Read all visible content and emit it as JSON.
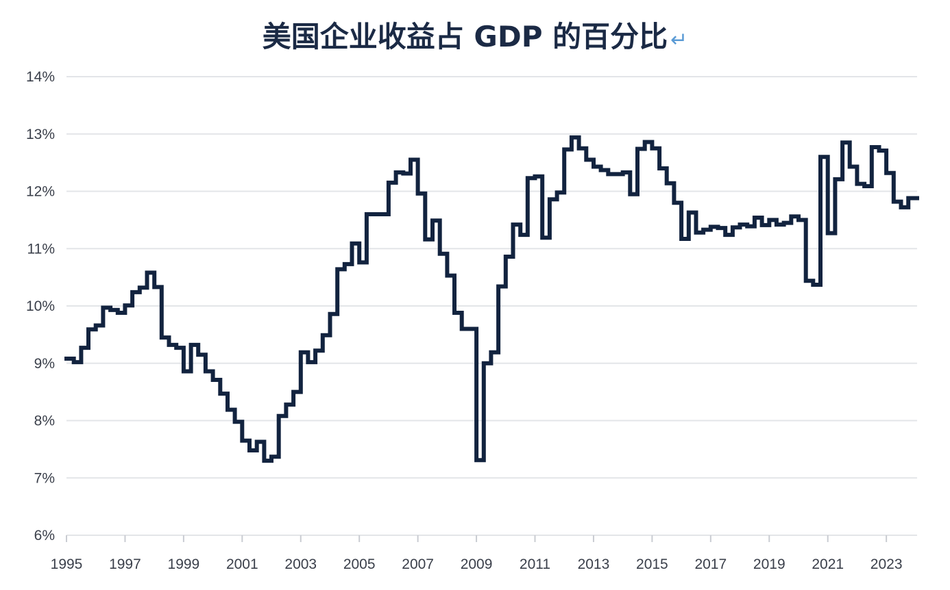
{
  "chart_data": {
    "type": "line",
    "title": "美国企业收益占 GDP 的百分比",
    "title_return_mark": "↵",
    "xlabel": "",
    "ylabel": "",
    "step": true,
    "grid": true,
    "xlim": [
      1995,
      2024.05
    ],
    "ylim": [
      6,
      14
    ],
    "y_ticks": [
      6,
      7,
      8,
      9,
      10,
      11,
      12,
      13,
      14
    ],
    "y_tick_labels": [
      "6%",
      "7%",
      "8%",
      "9%",
      "10%",
      "11%",
      "12%",
      "13%",
      "14%"
    ],
    "x_ticks": [
      1995,
      1997,
      1999,
      2001,
      2003,
      2005,
      2007,
      2009,
      2011,
      2013,
      2015,
      2017,
      2019,
      2021,
      2023
    ],
    "x_tick_labels": [
      "1995",
      "1997",
      "1999",
      "2001",
      "2003",
      "2005",
      "2007",
      "2009",
      "2011",
      "2013",
      "2015",
      "2017",
      "2019",
      "2021",
      "2023"
    ],
    "colors": {
      "line": "#12233f",
      "grid": "#e3e5e8",
      "title": "#1b2a45"
    },
    "series": [
      {
        "x": [
          1995.0,
          1995.25,
          1995.5,
          1995.75,
          1996.0,
          1996.25,
          1996.5,
          1996.75,
          1997.0,
          1997.25,
          1997.5,
          1997.75,
          1998.0,
          1998.25,
          1998.5,
          1998.75,
          1999.0,
          1999.25,
          1999.5,
          1999.75,
          2000.0,
          2000.25,
          2000.5,
          2000.75,
          2001.0,
          2001.25,
          2001.5,
          2001.75,
          2002.0,
          2002.25,
          2002.5,
          2002.75,
          2003.0,
          2003.25,
          2003.5,
          2003.75,
          2004.0,
          2004.25,
          2004.5,
          2004.75,
          2005.0,
          2005.25,
          2005.5,
          2005.75,
          2006.0,
          2006.25,
          2006.5,
          2006.75,
          2007.0,
          2007.25,
          2007.5,
          2007.75,
          2008.0,
          2008.25,
          2008.5,
          2008.75,
          2009.0,
          2009.25,
          2009.5,
          2009.75,
          2010.0,
          2010.25,
          2010.5,
          2010.75,
          2011.0,
          2011.25,
          2011.5,
          2011.75,
          2012.0,
          2012.25,
          2012.5,
          2012.75,
          2013.0,
          2013.25,
          2013.5,
          2013.75,
          2014.0,
          2014.25,
          2014.5,
          2014.75,
          2015.0,
          2015.25,
          2015.5,
          2015.75,
          2016.0,
          2016.25,
          2016.5,
          2016.75,
          2017.0,
          2017.25,
          2017.5,
          2017.75,
          2018.0,
          2018.25,
          2018.5,
          2018.75,
          2019.0,
          2019.25,
          2019.5,
          2019.75,
          2020.0,
          2020.25,
          2020.5,
          2020.75,
          2021.0,
          2021.25,
          2021.5,
          2021.75,
          2022.0,
          2022.25,
          2022.5,
          2022.75,
          2023.0,
          2023.25,
          2023.5,
          2023.75
        ],
        "values": [
          9.08,
          9.02,
          9.27,
          9.59,
          9.66,
          9.97,
          9.93,
          9.88,
          10.01,
          10.24,
          10.32,
          10.58,
          10.33,
          9.45,
          9.32,
          9.27,
          8.86,
          9.32,
          9.15,
          8.86,
          8.71,
          8.47,
          8.19,
          7.98,
          7.65,
          7.48,
          7.63,
          7.3,
          7.37,
          8.08,
          8.28,
          8.5,
          9.19,
          9.02,
          9.22,
          9.49,
          9.86,
          10.64,
          10.73,
          11.09,
          10.76,
          11.6,
          11.6,
          11.6,
          12.15,
          12.33,
          12.31,
          12.55,
          11.96,
          11.16,
          11.49,
          10.91,
          10.53,
          9.88,
          9.6,
          9.6,
          7.31,
          9.0,
          9.19,
          10.34,
          10.86,
          11.42,
          11.24,
          12.23,
          12.26,
          11.19,
          11.86,
          11.98,
          12.73,
          12.94,
          12.75,
          12.55,
          12.43,
          12.37,
          12.3,
          12.3,
          12.33,
          11.95,
          12.74,
          12.86,
          12.75,
          12.4,
          12.14,
          11.8,
          11.17,
          11.63,
          11.28,
          11.33,
          11.38,
          11.36,
          11.24,
          11.37,
          11.42,
          11.39,
          11.54,
          11.41,
          11.5,
          11.42,
          11.45,
          11.56,
          11.5,
          10.44,
          10.37,
          12.6,
          11.27,
          12.21,
          12.85,
          12.43,
          12.13,
          12.09,
          12.77,
          12.71,
          12.32,
          11.82,
          11.72,
          11.88
        ]
      }
    ]
  }
}
